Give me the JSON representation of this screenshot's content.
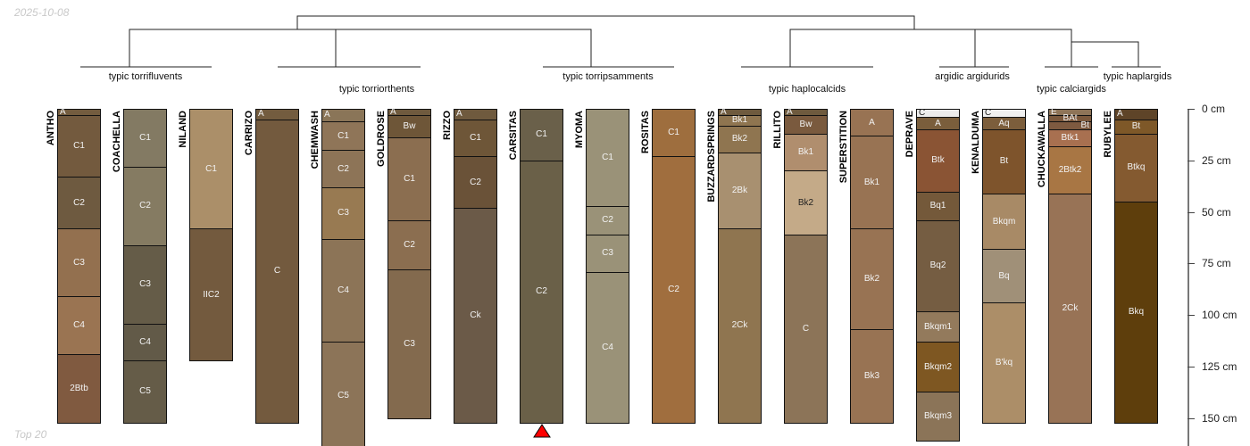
{
  "date_stamp": "2025-10-08",
  "footer_stamp": "Top 20",
  "taxa": [
    {
      "label": "typic torrifluvents"
    },
    {
      "label": "typic torriorthents"
    },
    {
      "label": "typic torripsamments"
    },
    {
      "label": "typic haplocalcids"
    },
    {
      "label": "argidic argidurids"
    },
    {
      "label": "typic calciargids"
    },
    {
      "label": "typic haplargids"
    }
  ],
  "depth_axis": {
    "unit": "cm",
    "ticks": [
      "0 cm",
      "25 cm",
      "50 cm",
      "75 cm",
      "100 cm",
      "125 cm",
      "150 cm"
    ],
    "max_depth": 165
  },
  "highlight_marker": {
    "profile": "CARSITAS",
    "color": "#ff0000"
  },
  "profiles": [
    {
      "name": "ANTHO",
      "horizons": [
        [
          "A",
          0,
          3,
          "#735c3f"
        ],
        [
          "C1",
          3,
          33,
          "#735a3e"
        ],
        [
          "C2",
          33,
          58,
          "#6e5a40"
        ],
        [
          "C3",
          58,
          91,
          "#93704f"
        ],
        [
          "C4",
          91,
          119,
          "#9a7452"
        ],
        [
          "2Btb",
          119,
          152,
          "#805a40"
        ]
      ]
    },
    {
      "name": "COACHELLA",
      "horizons": [
        [
          "C1",
          0,
          28,
          "#837a63"
        ],
        [
          "C2",
          28,
          66,
          "#857b62"
        ],
        [
          "C3",
          66,
          104,
          "#655c48"
        ],
        [
          "C4",
          104,
          122,
          "#625a48"
        ],
        [
          "C5",
          122,
          152,
          "#655c48"
        ]
      ]
    },
    {
      "name": "NILAND",
      "horizons": [
        [
          "C1",
          0,
          58,
          "#ab8f69"
        ],
        [
          "IIC2",
          58,
          122,
          "#735a3e"
        ]
      ]
    },
    {
      "name": "CARRIZO",
      "horizons": [
        [
          "A",
          0,
          5,
          "#735c3f"
        ],
        [
          "C",
          5,
          152,
          "#735a3e"
        ]
      ]
    },
    {
      "name": "CHEMWASH",
      "horizons": [
        [
          "A",
          0,
          6,
          "#8a7558"
        ],
        [
          "C1",
          6,
          20,
          "#8f7558"
        ],
        [
          "C2",
          20,
          38,
          "#8d7457"
        ],
        [
          "C3",
          38,
          63,
          "#987a52"
        ],
        [
          "C4",
          63,
          113,
          "#8c7457"
        ],
        [
          "C5",
          113,
          165,
          "#8c7458"
        ]
      ]
    },
    {
      "name": "GOLDROSE",
      "horizons": [
        [
          "A",
          0,
          3,
          "#6f5a3e"
        ],
        [
          "Bw",
          3,
          14,
          "#6e5638"
        ],
        [
          "C1",
          14,
          54,
          "#8b6e50"
        ],
        [
          "C2",
          54,
          78,
          "#8b6e50"
        ],
        [
          "C3",
          78,
          150,
          "#836a4e"
        ]
      ]
    },
    {
      "name": "RIZZO",
      "horizons": [
        [
          "A",
          0,
          5,
          "#6f5a3e"
        ],
        [
          "C1",
          5,
          23,
          "#6e5638"
        ],
        [
          "C2",
          23,
          48,
          "#6a5238"
        ],
        [
          "Ck",
          48,
          152,
          "#6b5a48"
        ]
      ]
    },
    {
      "name": "CARSITAS",
      "horizons": [
        [
          "C1",
          0,
          25,
          "#6a604a"
        ],
        [
          "C2",
          25,
          152,
          "#6a6048"
        ]
      ]
    },
    {
      "name": "MYOMA",
      "horizons": [
        [
          "C1",
          0,
          47,
          "#9a9278"
        ],
        [
          "C2",
          47,
          61,
          "#9a9278"
        ],
        [
          "C3",
          61,
          79,
          "#9a9278"
        ],
        [
          "C4",
          79,
          152,
          "#9a9278"
        ]
      ]
    },
    {
      "name": "ROSITAS",
      "horizons": [
        [
          "C1",
          0,
          23,
          "#9e6e3e"
        ],
        [
          "C2",
          23,
          152,
          "#a06e3e"
        ]
      ]
    },
    {
      "name": "BUZZARDSPRINGS",
      "horizons": [
        [
          "A",
          0,
          3,
          "#6e5a3e"
        ],
        [
          "Bk1",
          3,
          8,
          "#8f7550"
        ],
        [
          "Bk2",
          8,
          21,
          "#8f7550"
        ],
        [
          "2Bk",
          21,
          58,
          "#a89070"
        ],
        [
          "2Ck",
          58,
          152,
          "#8f7550"
        ]
      ]
    },
    {
      "name": "RILLITO",
      "horizons": [
        [
          "A",
          0,
          3,
          "#6e5a3e"
        ],
        [
          "Bw",
          3,
          12,
          "#7a5a3e"
        ],
        [
          "Bk1",
          12,
          30,
          "#b08e6e"
        ],
        [
          "Bk2",
          30,
          61,
          "#c4aa88"
        ],
        [
          "C",
          61,
          152,
          "#8c7458"
        ]
      ]
    },
    {
      "name": "SUPERSTITION",
      "horizons": [
        [
          "A",
          0,
          13,
          "#987353"
        ],
        [
          "Bk1",
          13,
          58,
          "#987353"
        ],
        [
          "Bk2",
          58,
          107,
          "#987353"
        ],
        [
          "Bk3",
          107,
          152,
          "#987353"
        ]
      ]
    },
    {
      "name": "DEPRAVE",
      "horizons": [
        [
          "C",
          0,
          4,
          "#ececec"
        ],
        [
          "A",
          4,
          10,
          "#7a5e3c"
        ],
        [
          "Btk",
          10,
          40,
          "#8a5434"
        ],
        [
          "Bq1",
          40,
          54,
          "#74593a"
        ],
        [
          "Bq2",
          54,
          98,
          "#755d42"
        ],
        [
          "Bkqm1",
          98,
          113,
          "#937a5c"
        ],
        [
          "Bkqm2",
          113,
          137,
          "#7e5722"
        ],
        [
          "Bkqm3",
          137,
          161,
          "#8b7458"
        ]
      ]
    },
    {
      "name": "KENALDUMA",
      "horizons": [
        [
          "C",
          0,
          4,
          "#f0f0f0"
        ],
        [
          "Aq",
          4,
          10,
          "#7c5e3c"
        ],
        [
          "Bt",
          10,
          41,
          "#7e542c"
        ],
        [
          "Bkqm",
          41,
          68,
          "#a88a66"
        ],
        [
          "Bq",
          68,
          94,
          "#a09078"
        ],
        [
          "B'kq",
          94,
          152,
          "#ac8e68"
        ]
      ]
    },
    {
      "name": "CHUCKAWALLA",
      "horizons": [
        [
          "E",
          0,
          3,
          "#8e7458"
        ],
        [
          "BAt",
          3,
          6,
          "#7b583c"
        ],
        [
          "Bt",
          6,
          10,
          "#7e5a40"
        ],
        [
          "Btk1",
          10,
          18,
          "#a87050"
        ],
        [
          "2Btk2",
          18,
          41,
          "#a87644"
        ],
        [
          "2Ck",
          41,
          152,
          "#987356"
        ]
      ]
    },
    {
      "name": "RUBYLEE",
      "horizons": [
        [
          "A",
          0,
          5,
          "#5e4428"
        ],
        [
          "Bt",
          5,
          12,
          "#7e5828"
        ],
        [
          "Btkq",
          12,
          45,
          "#845a30"
        ],
        [
          "Bkq",
          45,
          152,
          "#5e3e0c"
        ]
      ]
    }
  ]
}
